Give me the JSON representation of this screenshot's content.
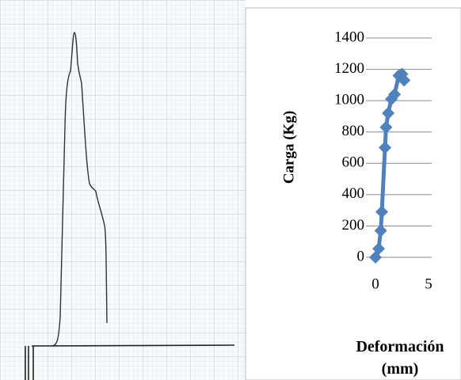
{
  "chart_data": {
    "type": "line",
    "y_label": "Carga (Kg)",
    "x_label": "Deformación (mm)",
    "series": [
      {
        "color": "#4f81bd",
        "x": [
          0,
          0.3,
          0.5,
          0.6,
          0.9,
          1.0,
          1.2,
          1.5,
          1.8,
          2.2,
          2.5,
          2.7
        ],
        "values": [
          0,
          55,
          170,
          290,
          700,
          830,
          920,
          1010,
          1040,
          1160,
          1170,
          1130
        ]
      }
    ],
    "xlim": [
      0,
      5
    ],
    "xticks": [
      0,
      5
    ],
    "ylim": [
      0,
      1400
    ],
    "yticks": [
      0,
      200,
      400,
      600,
      800,
      1000,
      1200,
      1400
    ],
    "grid": true
  }
}
